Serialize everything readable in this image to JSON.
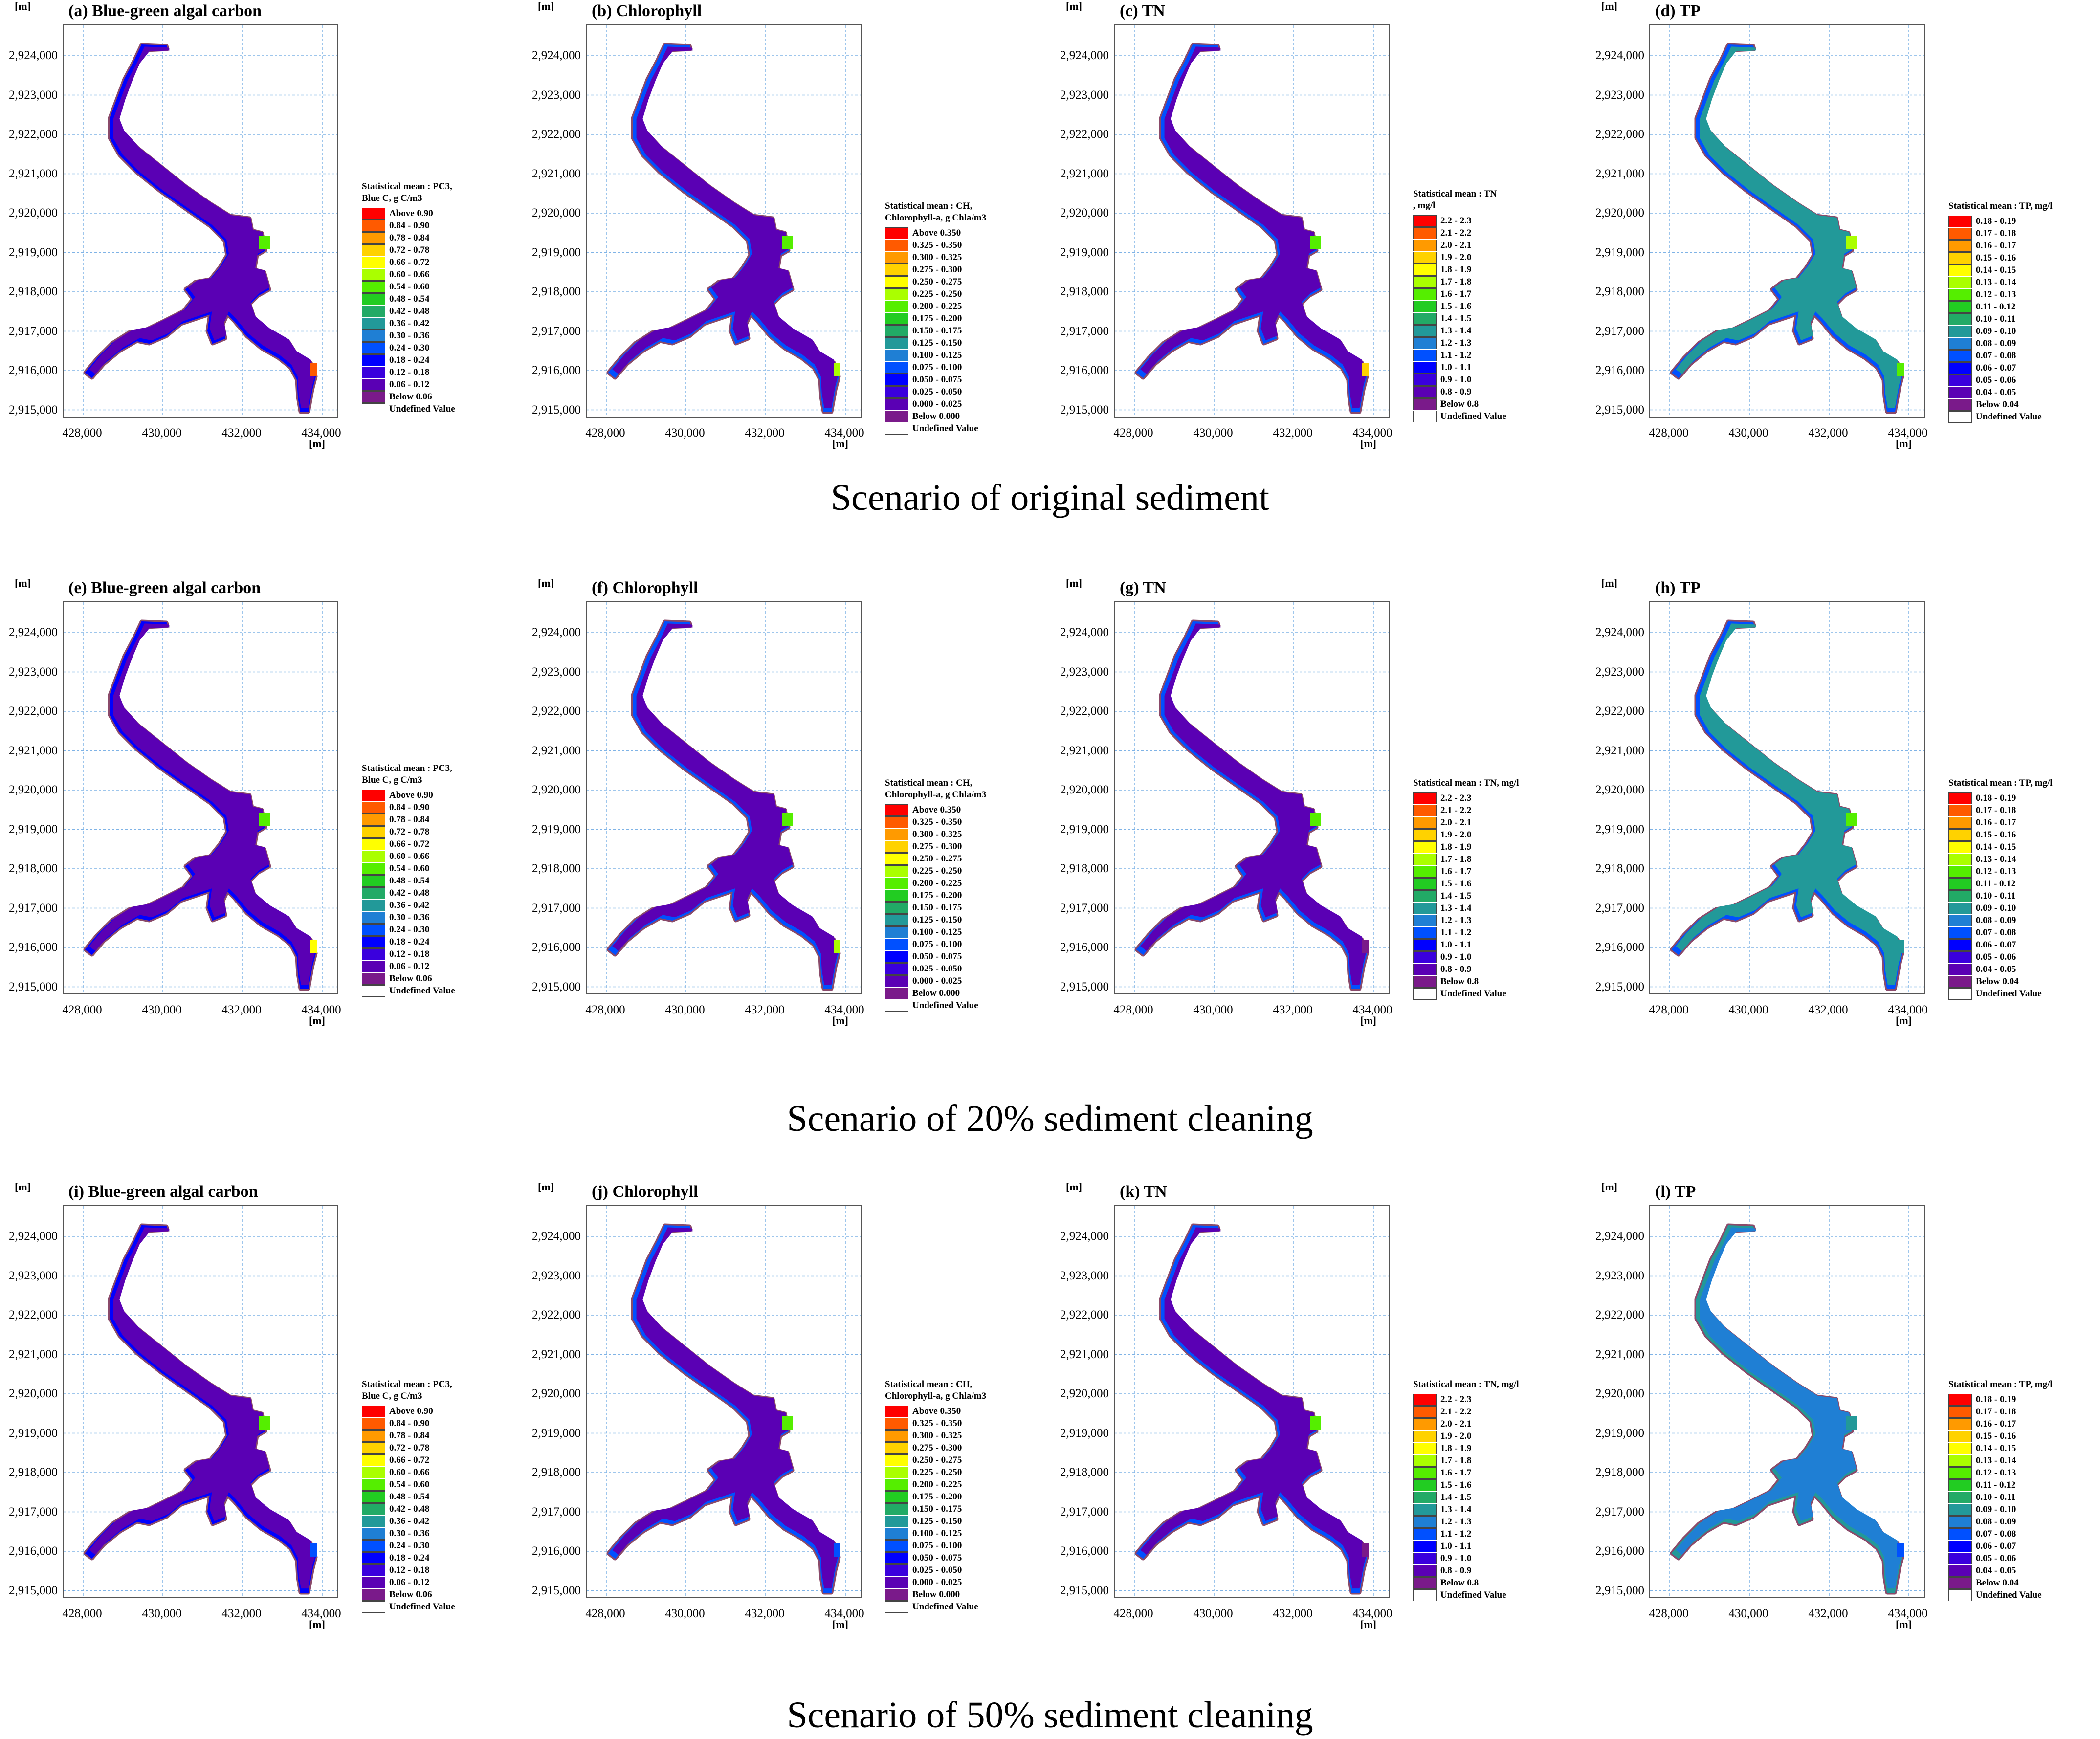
{
  "common": {
    "unit": "[m]",
    "y_ticks": [
      "2,924,000",
      "2,923,000",
      "2,922,000",
      "2,921,000",
      "2,920,000",
      "2,919,000",
      "2,918,000",
      "2,917,000",
      "2,916,000",
      "2,915,000"
    ],
    "x_ticks": [
      "428,000",
      "430,000",
      "432,000",
      "434,000"
    ],
    "undefined_label": "Undefined Value",
    "undefined_color": "#ffffff",
    "outline_color": "#8a4a6a"
  },
  "palettes": {
    "blue_green": [
      "#ff0000",
      "#ff5a00",
      "#ff9a00",
      "#ffd200",
      "#ffff00",
      "#aaff00",
      "#55ee00",
      "#22cc22",
      "#22aa66",
      "#229999",
      "#1f7fd4",
      "#0050ff",
      "#0000ff",
      "#3a00dd",
      "#5a00b4",
      "#7a1a8a",
      "#ffffff"
    ],
    "chlorophyll": [
      "#ff0000",
      "#ff5a00",
      "#ff9a00",
      "#ffd200",
      "#ffff00",
      "#aaff00",
      "#55ee00",
      "#22cc22",
      "#22aa66",
      "#229999",
      "#1f7fd4",
      "#0050ff",
      "#0000ff",
      "#3a00dd",
      "#5a00b4",
      "#7a1a8a",
      "#ffffff"
    ],
    "tn": [
      "#ff0000",
      "#ff5a00",
      "#ff9a00",
      "#ffd200",
      "#ffff00",
      "#aaff00",
      "#55ee00",
      "#22cc22",
      "#22aa66",
      "#229999",
      "#1f7fd4",
      "#0050ff",
      "#0000ff",
      "#3a00dd",
      "#5a00b4",
      "#7a1a8a",
      "#ffffff"
    ],
    "tp": [
      "#ff0000",
      "#ff5a00",
      "#ff9a00",
      "#ffd200",
      "#ffff00",
      "#aaff00",
      "#55ee00",
      "#22cc22",
      "#22aa66",
      "#229999",
      "#1f7fd4",
      "#0050ff",
      "#0000ff",
      "#3a00dd",
      "#5a00b4",
      "#7a1a8a",
      "#ffffff"
    ]
  },
  "legends": {
    "blue_green": [
      "Above 0.90",
      "0.84 - 0.90",
      "0.78 - 0.84",
      "0.72 - 0.78",
      "0.66 - 0.72",
      "0.60 - 0.66",
      "0.54 - 0.60",
      "0.48 - 0.54",
      "0.42 - 0.48",
      "0.36 - 0.42",
      "0.30 - 0.36",
      "0.24 - 0.30",
      "0.18 - 0.24",
      "0.12 - 0.18",
      "0.06 - 0.12",
      "Below 0.06",
      "Undefined Value"
    ],
    "chlorophyll": [
      "Above 0.350",
      "0.325 - 0.350",
      "0.300 - 0.325",
      "0.275 - 0.300",
      "0.250 - 0.275",
      "0.225 - 0.250",
      "0.200 - 0.225",
      "0.175 - 0.200",
      "0.150 - 0.175",
      "0.125 - 0.150",
      "0.100 - 0.125",
      "0.075 - 0.100",
      "0.050 - 0.075",
      "0.025 - 0.050",
      "0.000 - 0.025",
      "Below 0.000",
      "Undefined Value"
    ],
    "tn": [
      "2.2 - 2.3",
      "2.1 - 2.2",
      "2.0 - 2.1",
      "1.9 - 2.0",
      "1.8 - 1.9",
      "1.7 - 1.8",
      "1.6 - 1.7",
      "1.5 - 1.6",
      "1.4 - 1.5",
      "1.3 - 1.4",
      "1.2 - 1.3",
      "1.1 - 1.2",
      "1.0 - 1.1",
      "0.9 - 1.0",
      "0.8 - 0.9",
      "Below 0.8",
      "Undefined Value"
    ],
    "tp": [
      "0.18 - 0.19",
      "0.17 - 0.18",
      "0.16 - 0.17",
      "0.15 - 0.16",
      "0.14 - 0.15",
      "0.13 - 0.14",
      "0.12 - 0.13",
      "0.11 - 0.12",
      "0.10 - 0.11",
      "0.09 - 0.10",
      "0.08 - 0.09",
      "0.07 - 0.08",
      "0.06 - 0.07",
      "0.05 - 0.06",
      "0.04 - 0.05",
      "Below 0.04",
      "Undefined Value"
    ]
  },
  "legend_headers": {
    "blue_green": [
      "Statistical mean : PC3,",
      "Blue C, g C/m3"
    ],
    "chlorophyll": [
      "Statistical mean : CH,",
      "Chlorophyll-a, g Chla/m3"
    ],
    "tn_a": [
      "Statistical mean : TN",
      ", mg/l"
    ],
    "tn_b": [
      "Statistical mean : TN, mg/l"
    ],
    "tp": [
      "Statistical mean : TP, mg/l"
    ]
  },
  "panels": [
    {
      "id": "a",
      "title": "(a) Blue-green algal carbon",
      "kind": "blue_green",
      "header": "blue_green",
      "body": "#5a00b4",
      "edge": "#0000ff",
      "hot": "#ff5a00",
      "hot2": "#55ee00"
    },
    {
      "id": "b",
      "title": "(b) Chlorophyll",
      "kind": "chlorophyll",
      "header": "chlorophyll",
      "body": "#5a00b4",
      "edge": "#0050ff",
      "hot": "#aaff00",
      "hot2": "#55ee00"
    },
    {
      "id": "c",
      "title": "(c) TN",
      "kind": "tn",
      "header": "tn_a",
      "body": "#5a00b4",
      "edge": "#0050ff",
      "hot": "#ffd200",
      "hot2": "#55ee00"
    },
    {
      "id": "d",
      "title": "(d) TP",
      "kind": "tp",
      "header": "tp",
      "body": "#229999",
      "edge": "#0050ff",
      "hot": "#55ee00",
      "hot2": "#aaff00"
    },
    {
      "id": "e",
      "title": "(e) Blue-green algal carbon",
      "kind": "blue_green",
      "header": "blue_green",
      "body": "#5a00b4",
      "edge": "#0000ff",
      "hot": "#ffff00",
      "hot2": "#55ee00"
    },
    {
      "id": "f",
      "title": "(f) Chlorophyll",
      "kind": "chlorophyll",
      "header": "chlorophyll",
      "body": "#5a00b4",
      "edge": "#0050ff",
      "hot": "#aaff00",
      "hot2": "#55ee00"
    },
    {
      "id": "g",
      "title": "(g) TN",
      "kind": "tn",
      "header": "tn_b",
      "body": "#5a00b4",
      "edge": "#0050ff",
      "hot": "#7a1a8a",
      "hot2": "#55ee00"
    },
    {
      "id": "h",
      "title": "(h) TP",
      "kind": "tp",
      "header": "tp",
      "body": "#229999",
      "edge": "#0050ff",
      "hot": "#229999",
      "hot2": "#55ee00"
    },
    {
      "id": "i",
      "title": "(i) Blue-green algal carbon",
      "kind": "blue_green",
      "header": "blue_green",
      "body": "#5a00b4",
      "edge": "#0000ff",
      "hot": "#0050ff",
      "hot2": "#55ee00"
    },
    {
      "id": "j",
      "title": "(j) Chlorophyll",
      "kind": "chlorophyll",
      "header": "chlorophyll",
      "body": "#5a00b4",
      "edge": "#0050ff",
      "hot": "#0050ff",
      "hot2": "#55ee00"
    },
    {
      "id": "k",
      "title": "(k) TN",
      "kind": "tn",
      "header": "tn_b",
      "body": "#5a00b4",
      "edge": "#0050ff",
      "hot": "#7a1a8a",
      "hot2": "#55ee00"
    },
    {
      "id": "l",
      "title": "(l) TP",
      "kind": "tp",
      "header": "tp",
      "body": "#1f7fd4",
      "edge": "#229999",
      "hot": "#0050ff",
      "hot2": "#229999"
    }
  ],
  "captions": [
    "Scenario of original sediment",
    "Scenario of 20% sediment cleaning",
    "Scenario of 50% sediment cleaning"
  ]
}
